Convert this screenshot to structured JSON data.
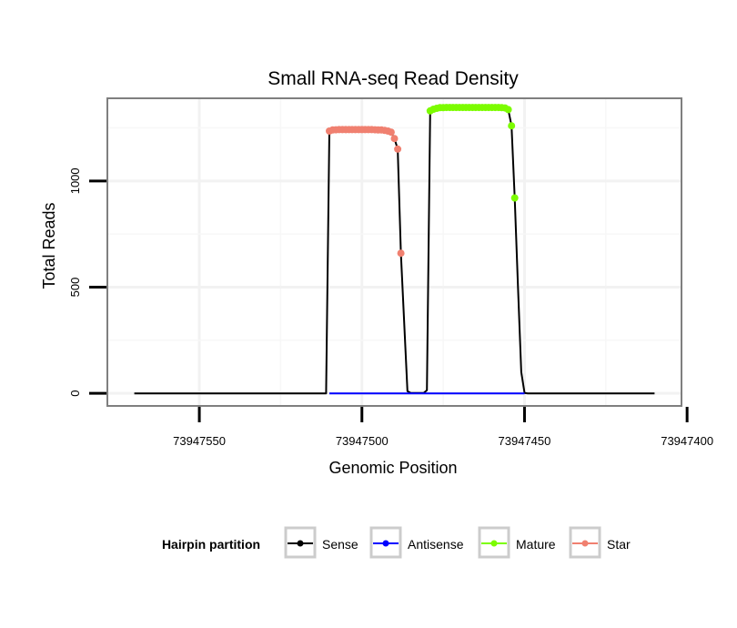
{
  "chart_data": {
    "type": "line",
    "title": "Small RNA-seq Read Density",
    "xlabel": "Genomic Position",
    "ylabel": "Total Reads",
    "x_reversed": true,
    "xlim": [
      73947578,
      73947402
    ],
    "ylim": [
      -55,
      1385
    ],
    "x_ticks": [
      73947550,
      73947500,
      73947450,
      73947400
    ],
    "x_tick_labels": [
      "73947550",
      "73947500",
      "73947450",
      "73947400"
    ],
    "y_ticks": [
      0,
      500,
      1000
    ],
    "y_tick_labels": [
      "0",
      "500",
      "1000"
    ],
    "grid": true,
    "legend": {
      "title": "Hairpin partition",
      "position": "bottom",
      "entries": [
        {
          "name": "Sense",
          "color": "#000000"
        },
        {
          "name": "Antisense",
          "color": "#0000ff"
        },
        {
          "name": "Mature",
          "color": "#7cfc00"
        },
        {
          "name": "Star",
          "color": "#f08070"
        }
      ]
    },
    "series": [
      {
        "name": "Sense",
        "color": "#000000",
        "x": [
          73947570,
          73947511,
          73947510,
          73947509,
          73947505,
          73947500,
          73947495,
          73947491,
          73947490,
          73947489,
          73947488,
          73947486,
          73947485,
          73947481,
          73947480,
          73947479,
          73947475,
          73947470,
          73947465,
          73947460,
          73947457,
          73947456,
          73947455,
          73947454,
          73947453,
          73947452,
          73947451,
          73947450,
          73947449,
          73947445,
          73947430,
          73947410
        ],
        "y": [
          0,
          0,
          1235,
          1240,
          1242,
          1242,
          1240,
          1230,
          1200,
          1150,
          660,
          10,
          2,
          2,
          15,
          1330,
          1345,
          1346,
          1346,
          1346,
          1346,
          1344,
          1336,
          1260,
          920,
          500,
          100,
          2,
          0,
          0,
          0,
          0
        ]
      },
      {
        "name": "Antisense",
        "color": "#0000ff",
        "x": [
          73947510,
          73947450
        ],
        "y": [
          0,
          0
        ]
      },
      {
        "name": "Mature",
        "color": "#7cfc00",
        "x": [
          73947479,
          73947478,
          73947477,
          73947476,
          73947475,
          73947474,
          73947473,
          73947472,
          73947471,
          73947470,
          73947469,
          73947468,
          73947467,
          73947466,
          73947465,
          73947464,
          73947463,
          73947462,
          73947461,
          73947460,
          73947459,
          73947458,
          73947457,
          73947456,
          73947455,
          73947454,
          73947453
        ],
        "y": [
          1330,
          1338,
          1342,
          1345,
          1345,
          1346,
          1346,
          1346,
          1346,
          1346,
          1346,
          1346,
          1346,
          1346,
          1346,
          1346,
          1346,
          1346,
          1346,
          1346,
          1346,
          1346,
          1345,
          1344,
          1336,
          1260,
          920
        ]
      },
      {
        "name": "Star",
        "color": "#f08070",
        "x": [
          73947510,
          73947509,
          73947508,
          73947507,
          73947506,
          73947505,
          73947504,
          73947503,
          73947502,
          73947501,
          73947500,
          73947499,
          73947498,
          73947497,
          73947496,
          73947495,
          73947494,
          73947493,
          73947492,
          73947491,
          73947490,
          73947489,
          73947488
        ],
        "y": [
          1235,
          1240,
          1241,
          1242,
          1242,
          1242,
          1242,
          1242,
          1242,
          1242,
          1242,
          1242,
          1242,
          1242,
          1241,
          1240,
          1240,
          1238,
          1235,
          1230,
          1200,
          1150,
          660
        ]
      }
    ]
  }
}
